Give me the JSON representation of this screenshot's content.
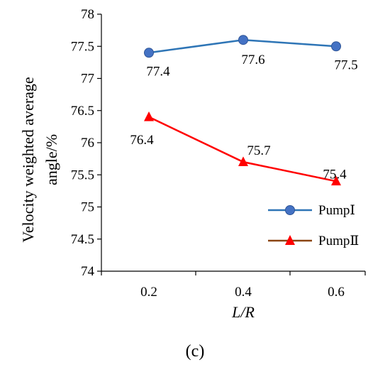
{
  "chart_data": {
    "type": "line",
    "x": [
      0.2,
      0.4,
      0.6
    ],
    "x_tick_labels": [
      "0.2",
      "0.4",
      "0.6"
    ],
    "xlabel": "L/R",
    "ylabel_line1": "Velocity weighted average",
    "ylabel_line2": "angle/%",
    "ylim": [
      74,
      78
    ],
    "y_ticks": [
      74,
      74.5,
      75,
      75.5,
      76,
      76.5,
      77,
      77.5,
      78
    ],
    "y_tick_labels": [
      "74",
      "74.5",
      "75",
      "75.5",
      "76",
      "76.5",
      "77",
      "77.5",
      "78"
    ],
    "grid": false,
    "legend_position": "bottom-right",
    "series": [
      {
        "name": "PumpⅠ",
        "values": [
          77.4,
          77.6,
          77.5
        ],
        "labels": [
          "77.4",
          "77.6",
          "77.5"
        ],
        "color": "#2E75B6",
        "marker": "circle",
        "marker_color": "#4472C4"
      },
      {
        "name": "PumpⅡ",
        "values": [
          76.4,
          75.7,
          75.4
        ],
        "labels": [
          "76.4",
          "75.7",
          "75.4"
        ],
        "color": "#FF0000",
        "marker": "triangle",
        "marker_color": "#FF0000",
        "legend_line_color": "#8B4513"
      }
    ],
    "panel_label": "(c)"
  }
}
